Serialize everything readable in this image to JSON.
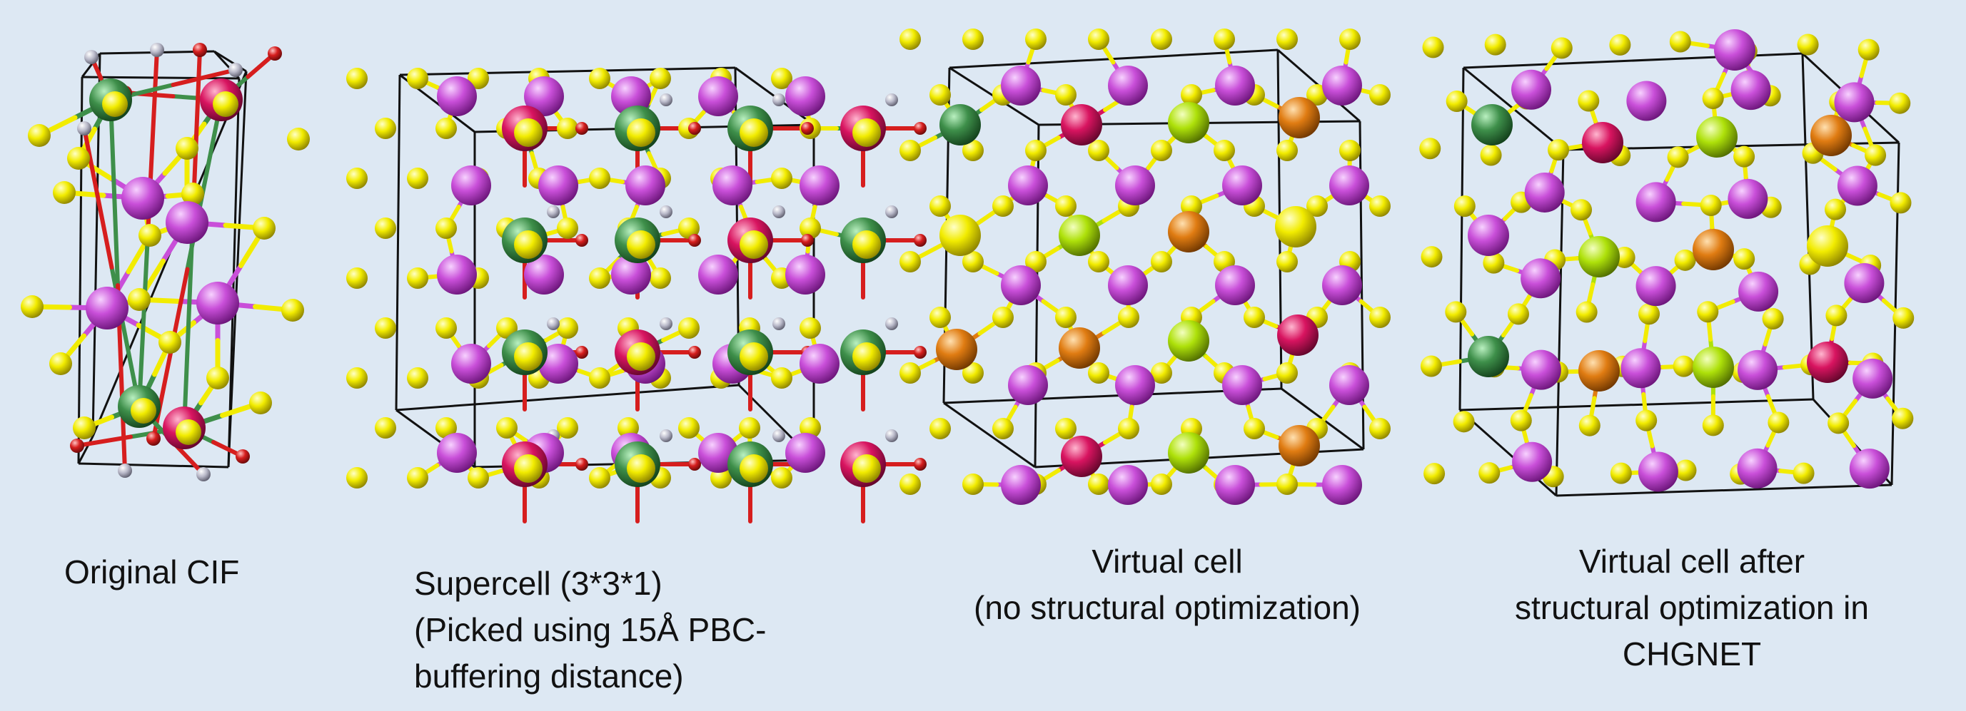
{
  "panels": [
    {
      "caption": [
        "Original CIF"
      ]
    },
    {
      "caption": [
        "Supercell (3*3*1)",
        "(Picked using 15Å PBC-",
        "buffering distance)"
      ]
    },
    {
      "caption": [
        "Virtual cell",
        "(no structural optimization)"
      ]
    },
    {
      "caption": [
        "Virtual cell after",
        "structural optimization in",
        "CHGNET"
      ]
    }
  ],
  "colors": {
    "background": "#dde8f3",
    "cell_edge": "#111111",
    "atom_magenta": "#c94fd9",
    "atom_yellow": "#f2ec00",
    "atom_green": "#3e8f4a",
    "atom_crimson": "#d81460",
    "atom_orange": "#e07c12",
    "atom_lime": "#aee10a",
    "atom_red": "#d61e1e",
    "atom_grey": "#b8b8c8"
  }
}
